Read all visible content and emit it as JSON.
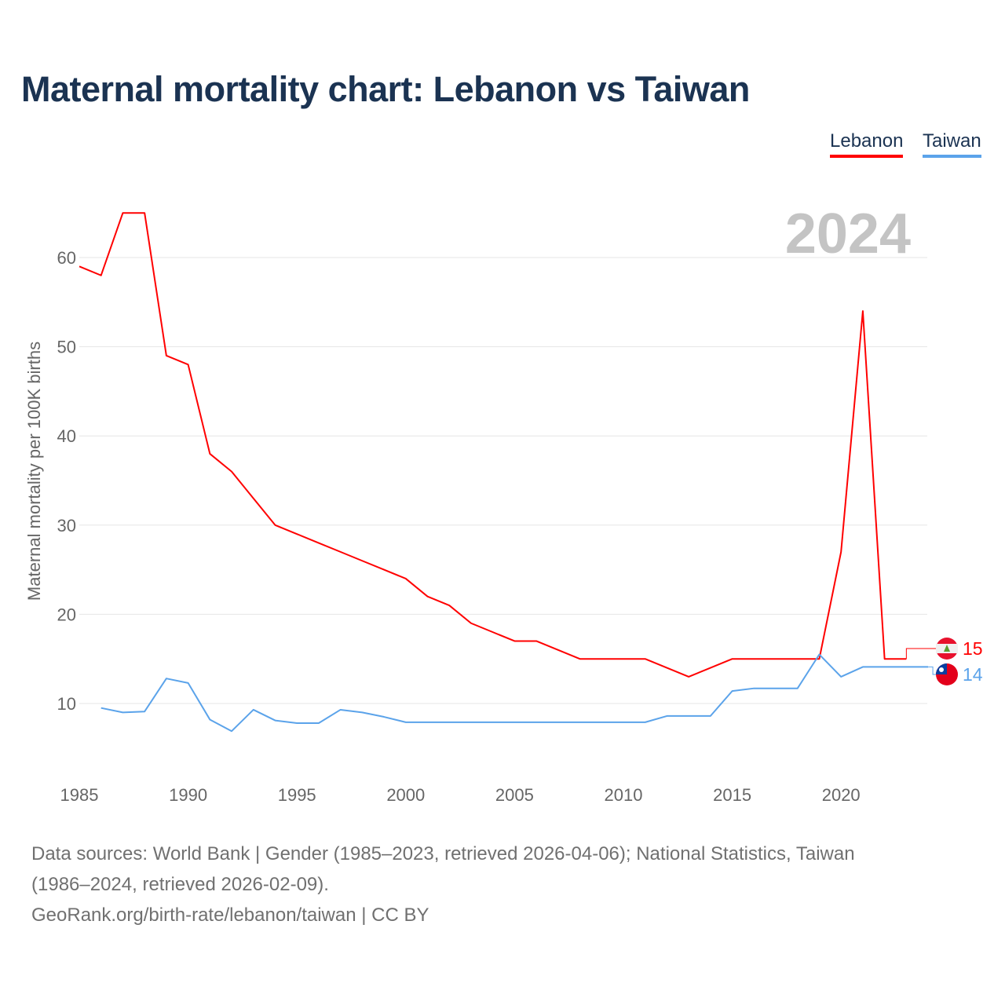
{
  "title": "Maternal mortality chart: Lebanon vs Taiwan",
  "year_watermark": "2024",
  "footer": {
    "line1": "Data sources: World Bank | Gender (1985–2023, retrieved 2026-04-06); National Statistics, Taiwan",
    "line2": "(1986–2024, retrieved 2026-02-09).",
    "line3": "GeoRank.org/birth-rate/lebanon/taiwan | CC BY"
  },
  "chart_data": {
    "type": "line",
    "title": "Maternal mortality chart: Lebanon vs Taiwan",
    "ylabel": "Maternal mortality per 100K births",
    "xlabel": "",
    "xlim": [
      1985,
      2024
    ],
    "ylim": [
      3,
      67
    ],
    "xticks": [
      "1985",
      "1990",
      "1995",
      "2000",
      "2005",
      "2010",
      "2015",
      "2020"
    ],
    "yticks": [
      "10",
      "20",
      "30",
      "40",
      "50",
      "60"
    ],
    "grid": true,
    "legend": "top-right",
    "series": [
      {
        "name": "Lebanon",
        "color": "#ff0000",
        "end_label": "15",
        "x": [
          1985,
          1986,
          1987,
          1988,
          1989,
          1990,
          1991,
          1992,
          1993,
          1994,
          1995,
          1996,
          1997,
          1998,
          1999,
          2000,
          2001,
          2002,
          2003,
          2004,
          2005,
          2006,
          2007,
          2008,
          2009,
          2010,
          2011,
          2012,
          2013,
          2014,
          2015,
          2016,
          2017,
          2018,
          2019,
          2020,
          2021,
          2022,
          2023
        ],
        "values": [
          59,
          58,
          65,
          65,
          49,
          48,
          38,
          36,
          33,
          30,
          29,
          28,
          27,
          26,
          25,
          24,
          22,
          21,
          19,
          18,
          17,
          17,
          16,
          15,
          15,
          15,
          15,
          14,
          13,
          14,
          15,
          15,
          15,
          15,
          15,
          27,
          54,
          15,
          15
        ]
      },
      {
        "name": "Taiwan",
        "color": "#5ba3ea",
        "end_label": "14",
        "x": [
          1986,
          1987,
          1988,
          1989,
          1990,
          1991,
          1992,
          1993,
          1994,
          1995,
          1996,
          1997,
          1998,
          1999,
          2000,
          2001,
          2002,
          2003,
          2004,
          2005,
          2006,
          2007,
          2008,
          2009,
          2010,
          2011,
          2012,
          2013,
          2014,
          2015,
          2016,
          2017,
          2018,
          2019,
          2020,
          2021,
          2022,
          2023,
          2024
        ],
        "values": [
          9.5,
          9.0,
          9.1,
          12.8,
          12.3,
          8.2,
          6.9,
          9.3,
          8.1,
          7.8,
          7.8,
          9.3,
          9.0,
          8.5,
          7.9,
          7.9,
          7.9,
          7.9,
          7.9,
          7.9,
          7.9,
          7.9,
          7.9,
          7.9,
          7.9,
          7.9,
          8.6,
          8.6,
          8.6,
          11.4,
          11.7,
          11.7,
          11.7,
          15.5,
          13.0,
          14.1,
          14.1,
          14.1,
          14.1
        ]
      }
    ]
  }
}
